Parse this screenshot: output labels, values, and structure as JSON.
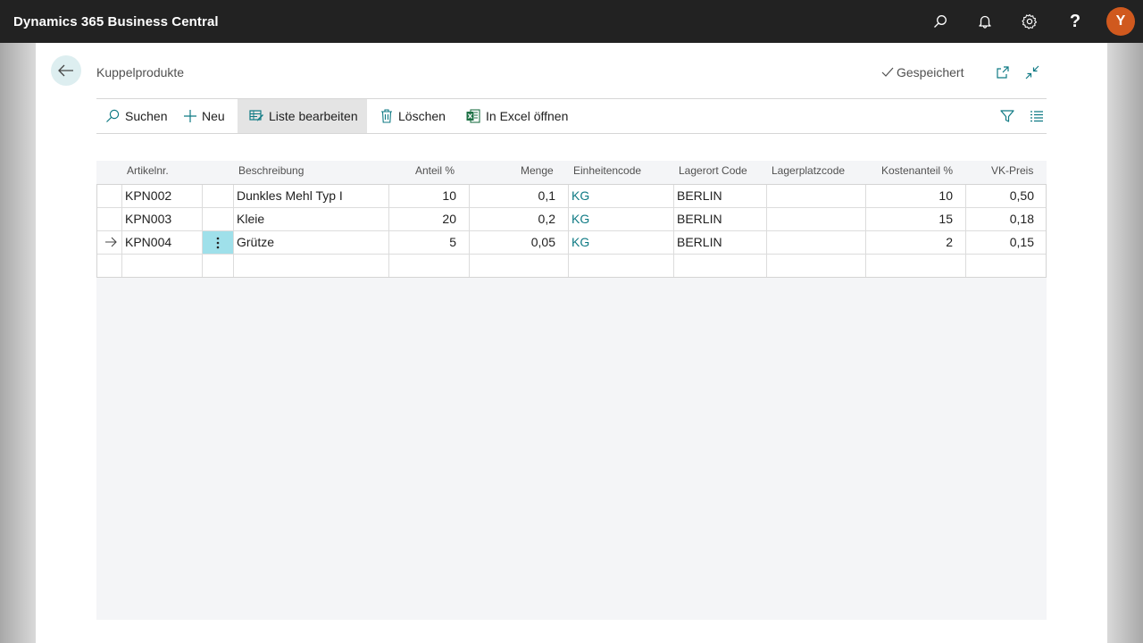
{
  "app": {
    "title": "Dynamics 365 Business Central",
    "user_initial": "Y"
  },
  "topbar_icons": [
    "search-icon",
    "bell-icon",
    "gear-icon",
    "help-icon"
  ],
  "page": {
    "title": "Kuppelprodukte",
    "status": "Gespeichert"
  },
  "actions": {
    "search": "Suchen",
    "new": "Neu",
    "edit_list": "Liste bearbeiten",
    "delete": "Löschen",
    "open_excel": "In Excel öffnen"
  },
  "columns": {
    "item_no": "Artikelnr.",
    "description": "Beschreibung",
    "share_pct": "Anteil %",
    "quantity": "Menge",
    "unit_code": "Einheitencode",
    "location_code": "Lagerort Code",
    "bin_code": "Lagerplatzcode",
    "cost_share_pct": "Kostenanteil %",
    "unit_price": "VK-Preis"
  },
  "rows": [
    {
      "item_no": "KPN002",
      "description": "Dunkles Mehl Typ I",
      "share_pct": "10",
      "quantity": "0,1",
      "unit_code": "KG",
      "location_code": "BERLIN",
      "bin_code": "",
      "cost_share_pct": "10",
      "unit_price": "0,50"
    },
    {
      "item_no": "KPN003",
      "description": "Kleie",
      "share_pct": "20",
      "quantity": "0,2",
      "unit_code": "KG",
      "location_code": "BERLIN",
      "bin_code": "",
      "cost_share_pct": "15",
      "unit_price": "0,18"
    },
    {
      "item_no": "KPN004",
      "description": "Grütze",
      "share_pct": "5",
      "quantity": "0,05",
      "unit_code": "KG",
      "location_code": "BERLIN",
      "bin_code": "",
      "cost_share_pct": "2",
      "unit_price": "0,15"
    }
  ],
  "colors": {
    "accent": "#0f7a84",
    "topbar": "#222222",
    "avatar": "#d0591e",
    "selected_cell": "#9fe0ea"
  }
}
